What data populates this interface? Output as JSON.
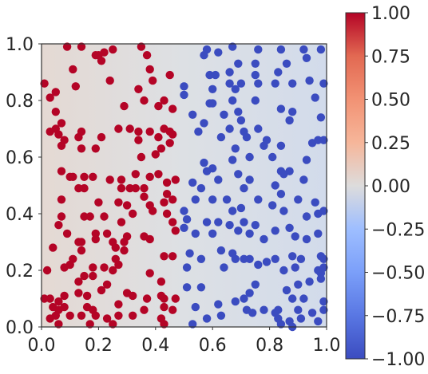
{
  "chart_data": {
    "type": "scatter",
    "title": "",
    "xlabel": "",
    "ylabel": "",
    "xlim": [
      0.0,
      1.0
    ],
    "ylim": [
      0.0,
      1.0
    ],
    "grid": false,
    "x_ticks": [
      "0.0",
      "0.2",
      "0.4",
      "0.6",
      "0.8",
      "1.0"
    ],
    "y_ticks": [
      "0.0",
      "0.2",
      "0.4",
      "0.6",
      "0.8",
      "1.0"
    ],
    "colorbar": {
      "colormap": "coolwarm",
      "range": [
        -1.0,
        1.0
      ],
      "ticks": [
        "−1.00",
        "−0.75",
        "−0.50",
        "−0.25",
        "0.00",
        "0.25",
        "0.50",
        "0.75",
        "1.00"
      ]
    },
    "colors": {
      "positive": "#b40426",
      "negative": "#3b4cc0"
    },
    "series": [
      {
        "class": 1,
        "points": [
          [
            0.09,
            0.99
          ],
          [
            0.14,
            0.99
          ],
          [
            0.19,
            0.96
          ],
          [
            0.25,
            0.98
          ],
          [
            0.35,
            0.99
          ],
          [
            0.37,
            0.96
          ],
          [
            0.2,
            0.96
          ],
          [
            0.22,
            0.97
          ],
          [
            0.21,
            0.94
          ],
          [
            0.11,
            0.91
          ],
          [
            0.01,
            0.86
          ],
          [
            0.05,
            0.83
          ],
          [
            0.03,
            0.81
          ],
          [
            0.12,
            0.85
          ],
          [
            0.24,
            0.87
          ],
          [
            0.38,
            0.91
          ],
          [
            0.39,
            0.87
          ],
          [
            0.45,
            0.89
          ],
          [
            0.34,
            0.84
          ],
          [
            0.29,
            0.78
          ],
          [
            0.36,
            0.8
          ],
          [
            0.41,
            0.78
          ],
          [
            0.46,
            0.77
          ],
          [
            0.43,
            0.8
          ],
          [
            0.05,
            0.76
          ],
          [
            0.03,
            0.69
          ],
          [
            0.05,
            0.7
          ],
          [
            0.07,
            0.72
          ],
          [
            0.14,
            0.69
          ],
          [
            0.06,
            0.68
          ],
          [
            0.08,
            0.66
          ],
          [
            0.07,
            0.64
          ],
          [
            0.13,
            0.67
          ],
          [
            0.14,
            0.63
          ],
          [
            0.21,
            0.67
          ],
          [
            0.27,
            0.7
          ],
          [
            0.31,
            0.7
          ],
          [
            0.34,
            0.69
          ],
          [
            0.38,
            0.69
          ],
          [
            0.34,
            0.66
          ],
          [
            0.43,
            0.7
          ],
          [
            0.45,
            0.69
          ],
          [
            0.41,
            0.67
          ],
          [
            0.19,
            0.63
          ],
          [
            0.35,
            0.6
          ],
          [
            0.4,
            0.61
          ],
          [
            0.42,
            0.63
          ],
          [
            0.45,
            0.65
          ],
          [
            0.46,
            0.68
          ],
          [
            0.07,
            0.55
          ],
          [
            0.1,
            0.53
          ],
          [
            0.11,
            0.53
          ],
          [
            0.15,
            0.53
          ],
          [
            0.18,
            0.53
          ],
          [
            0.24,
            0.52
          ],
          [
            0.28,
            0.52
          ],
          [
            0.33,
            0.54
          ],
          [
            0.38,
            0.53
          ],
          [
            0.41,
            0.54
          ],
          [
            0.47,
            0.52
          ],
          [
            0.44,
            0.51
          ],
          [
            0.15,
            0.49
          ],
          [
            0.13,
            0.49
          ],
          [
            0.28,
            0.49
          ],
          [
            0.31,
            0.49
          ],
          [
            0.33,
            0.49
          ],
          [
            0.36,
            0.49
          ],
          [
            0.36,
            0.46
          ],
          [
            0.44,
            0.47
          ],
          [
            0.46,
            0.45
          ],
          [
            0.07,
            0.45
          ],
          [
            0.2,
            0.44
          ],
          [
            0.27,
            0.44
          ],
          [
            0.3,
            0.43
          ],
          [
            0.38,
            0.43
          ],
          [
            0.43,
            0.44
          ],
          [
            0.07,
            0.39
          ],
          [
            0.15,
            0.39
          ],
          [
            0.17,
            0.39
          ],
          [
            0.22,
            0.39
          ],
          [
            0.06,
            0.36
          ],
          [
            0.28,
            0.37
          ],
          [
            0.32,
            0.4
          ],
          [
            0.39,
            0.41
          ],
          [
            0.44,
            0.4
          ],
          [
            0.46,
            0.37
          ],
          [
            0.09,
            0.33
          ],
          [
            0.19,
            0.33
          ],
          [
            0.23,
            0.33
          ],
          [
            0.3,
            0.32
          ],
          [
            0.36,
            0.32
          ],
          [
            0.38,
            0.31
          ],
          [
            0.47,
            0.34
          ],
          [
            0.04,
            0.28
          ],
          [
            0.13,
            0.3
          ],
          [
            0.14,
            0.3
          ],
          [
            0.14,
            0.27
          ],
          [
            0.25,
            0.3
          ],
          [
            0.26,
            0.28
          ],
          [
            0.29,
            0.27
          ],
          [
            0.29,
            0.3
          ],
          [
            0.19,
            0.31
          ],
          [
            0.46,
            0.25
          ],
          [
            0.43,
            0.25
          ],
          [
            0.26,
            0.24
          ],
          [
            0.11,
            0.24
          ],
          [
            0.08,
            0.21
          ],
          [
            0.1,
            0.22
          ],
          [
            0.18,
            0.21
          ],
          [
            0.22,
            0.21
          ],
          [
            0.02,
            0.2
          ],
          [
            0.25,
            0.2
          ],
          [
            0.27,
            0.22
          ],
          [
            0.38,
            0.19
          ],
          [
            0.42,
            0.16
          ],
          [
            0.13,
            0.16
          ],
          [
            0.15,
            0.18
          ],
          [
            0.18,
            0.18
          ],
          [
            0.23,
            0.15
          ],
          [
            0.13,
            0.12
          ],
          [
            0.08,
            0.11
          ],
          [
            0.16,
            0.11
          ],
          [
            0.21,
            0.13
          ],
          [
            0.3,
            0.12
          ],
          [
            0.32,
            0.11
          ],
          [
            0.37,
            0.1
          ],
          [
            0.42,
            0.11
          ],
          [
            0.43,
            0.1
          ],
          [
            0.47,
            0.1
          ],
          [
            0.01,
            0.1
          ],
          [
            0.03,
            0.1
          ],
          [
            0.06,
            0.09
          ],
          [
            0.04,
            0.07
          ],
          [
            0.06,
            0.06
          ],
          [
            0.08,
            0.07
          ],
          [
            0.16,
            0.07
          ],
          [
            0.18,
            0.06
          ],
          [
            0.27,
            0.08
          ],
          [
            0.36,
            0.06
          ],
          [
            0.43,
            0.07
          ],
          [
            0.05,
            0.04
          ],
          [
            0.03,
            0.03
          ],
          [
            0.1,
            0.04
          ],
          [
            0.14,
            0.04
          ],
          [
            0.19,
            0.04
          ],
          [
            0.23,
            0.03
          ],
          [
            0.27,
            0.04
          ],
          [
            0.32,
            0.04
          ],
          [
            0.42,
            0.03
          ],
          [
            0.46,
            0.06
          ],
          [
            0.06,
            0.01
          ],
          [
            0.17,
            0.01
          ],
          [
            0.25,
            0.01
          ],
          [
            0.43,
            0.01
          ]
        ]
      },
      {
        "class": -1,
        "points": [
          [
            0.58,
            0.98
          ],
          [
            0.62,
            0.97
          ],
          [
            0.67,
            0.99
          ],
          [
            0.76,
            0.98
          ],
          [
            0.84,
            0.98
          ],
          [
            0.92,
            0.98
          ],
          [
            0.98,
            0.98
          ],
          [
            0.57,
            0.96
          ],
          [
            0.69,
            0.93
          ],
          [
            0.75,
            0.93
          ],
          [
            0.86,
            0.93
          ],
          [
            0.93,
            0.95
          ],
          [
            0.59,
            0.89
          ],
          [
            0.61,
            0.89
          ],
          [
            0.66,
            0.9
          ],
          [
            0.75,
            0.89
          ],
          [
            0.83,
            0.9
          ],
          [
            0.94,
            0.87
          ],
          [
            0.5,
            0.85
          ],
          [
            0.6,
            0.84
          ],
          [
            0.66,
            0.86
          ],
          [
            0.68,
            0.84
          ],
          [
            0.7,
            0.86
          ],
          [
            0.76,
            0.86
          ],
          [
            0.82,
            0.86
          ],
          [
            0.88,
            0.86
          ],
          [
            0.99,
            0.86
          ],
          [
            0.5,
            0.82
          ],
          [
            0.59,
            0.79
          ],
          [
            0.6,
            0.79
          ],
          [
            0.67,
            0.8
          ],
          [
            0.69,
            0.76
          ],
          [
            0.75,
            0.8
          ],
          [
            0.84,
            0.77
          ],
          [
            0.88,
            0.76
          ],
          [
            0.96,
            0.81
          ],
          [
            0.53,
            0.75
          ],
          [
            0.64,
            0.75
          ],
          [
            0.7,
            0.73
          ],
          [
            0.57,
            0.72
          ],
          [
            0.66,
            0.7
          ],
          [
            0.76,
            0.7
          ],
          [
            0.87,
            0.73
          ],
          [
            0.98,
            0.74
          ],
          [
            0.55,
            0.69
          ],
          [
            0.63,
            0.67
          ],
          [
            0.71,
            0.69
          ],
          [
            0.72,
            0.67
          ],
          [
            0.79,
            0.66
          ],
          [
            0.78,
            0.64
          ],
          [
            0.84,
            0.64
          ],
          [
            0.95,
            0.65
          ],
          [
            0.97,
            0.66
          ],
          [
            0.99,
            0.66
          ],
          [
            0.57,
            0.58
          ],
          [
            0.6,
            0.56
          ],
          [
            0.67,
            0.59
          ],
          [
            0.68,
            0.63
          ],
          [
            0.73,
            0.6
          ],
          [
            0.81,
            0.6
          ],
          [
            0.84,
            0.55
          ],
          [
            0.93,
            0.59
          ],
          [
            0.58,
            0.55
          ],
          [
            0.69,
            0.54
          ],
          [
            0.62,
            0.52
          ],
          [
            0.73,
            0.52
          ],
          [
            0.85,
            0.54
          ],
          [
            0.87,
            0.55
          ],
          [
            0.92,
            0.52
          ],
          [
            0.53,
            0.51
          ],
          [
            0.56,
            0.49
          ],
          [
            0.71,
            0.49
          ],
          [
            0.82,
            0.5
          ],
          [
            0.84,
            0.47
          ],
          [
            0.54,
            0.45
          ],
          [
            0.6,
            0.45
          ],
          [
            0.65,
            0.45
          ],
          [
            0.7,
            0.42
          ],
          [
            0.76,
            0.45
          ],
          [
            0.81,
            0.43
          ],
          [
            0.9,
            0.45
          ],
          [
            0.96,
            0.44
          ],
          [
            0.5,
            0.41
          ],
          [
            0.67,
            0.41
          ],
          [
            0.85,
            0.41
          ],
          [
            0.93,
            0.39
          ],
          [
            0.97,
            0.4
          ],
          [
            0.99,
            0.41
          ],
          [
            0.51,
            0.38
          ],
          [
            0.58,
            0.37
          ],
          [
            0.62,
            0.37
          ],
          [
            0.66,
            0.36
          ],
          [
            0.71,
            0.37
          ],
          [
            0.75,
            0.36
          ],
          [
            0.87,
            0.35
          ],
          [
            0.5,
            0.35
          ],
          [
            0.54,
            0.33
          ],
          [
            0.6,
            0.33
          ],
          [
            0.69,
            0.34
          ],
          [
            0.73,
            0.33
          ],
          [
            0.78,
            0.31
          ],
          [
            0.82,
            0.34
          ],
          [
            0.89,
            0.32
          ],
          [
            0.93,
            0.31
          ],
          [
            0.97,
            0.33
          ],
          [
            0.63,
            0.27
          ],
          [
            0.67,
            0.26
          ],
          [
            0.68,
            0.24
          ],
          [
            0.73,
            0.24
          ],
          [
            0.76,
            0.22
          ],
          [
            0.79,
            0.23
          ],
          [
            0.82,
            0.24
          ],
          [
            0.88,
            0.25
          ],
          [
            0.91,
            0.24
          ],
          [
            0.98,
            0.25
          ],
          [
            0.99,
            0.24
          ],
          [
            0.52,
            0.26
          ],
          [
            0.51,
            0.21
          ],
          [
            0.56,
            0.24
          ],
          [
            0.64,
            0.21
          ],
          [
            0.71,
            0.24
          ],
          [
            0.85,
            0.2
          ],
          [
            0.89,
            0.21
          ],
          [
            0.97,
            0.2
          ],
          [
            0.98,
            0.19
          ],
          [
            0.99,
            0.21
          ],
          [
            0.98,
            0.17
          ],
          [
            0.94,
            0.16
          ],
          [
            0.9,
            0.15
          ],
          [
            0.86,
            0.13
          ],
          [
            0.75,
            0.15
          ],
          [
            0.73,
            0.12
          ],
          [
            0.51,
            0.14
          ],
          [
            0.56,
            0.14
          ],
          [
            0.68,
            0.09
          ],
          [
            0.71,
            0.1
          ],
          [
            0.78,
            0.06
          ],
          [
            0.83,
            0.06
          ],
          [
            0.88,
            0.1
          ],
          [
            0.92,
            0.1
          ],
          [
            0.99,
            0.09
          ],
          [
            0.54,
            0.07
          ],
          [
            0.62,
            0.08
          ],
          [
            0.72,
            0.06
          ],
          [
            0.74,
            0.05
          ],
          [
            0.82,
            0.05
          ],
          [
            0.9,
            0.06
          ],
          [
            0.95,
            0.05
          ],
          [
            0.99,
            0.06
          ],
          [
            0.58,
            0.03
          ],
          [
            0.63,
            0.04
          ],
          [
            0.83,
            0.03
          ],
          [
            0.87,
            0.02
          ],
          [
            0.91,
            0.03
          ],
          [
            0.97,
            0.02
          ],
          [
            0.53,
            0.01
          ],
          [
            0.84,
            0.01
          ],
          [
            0.88,
            0.0
          ]
        ]
      }
    ]
  }
}
